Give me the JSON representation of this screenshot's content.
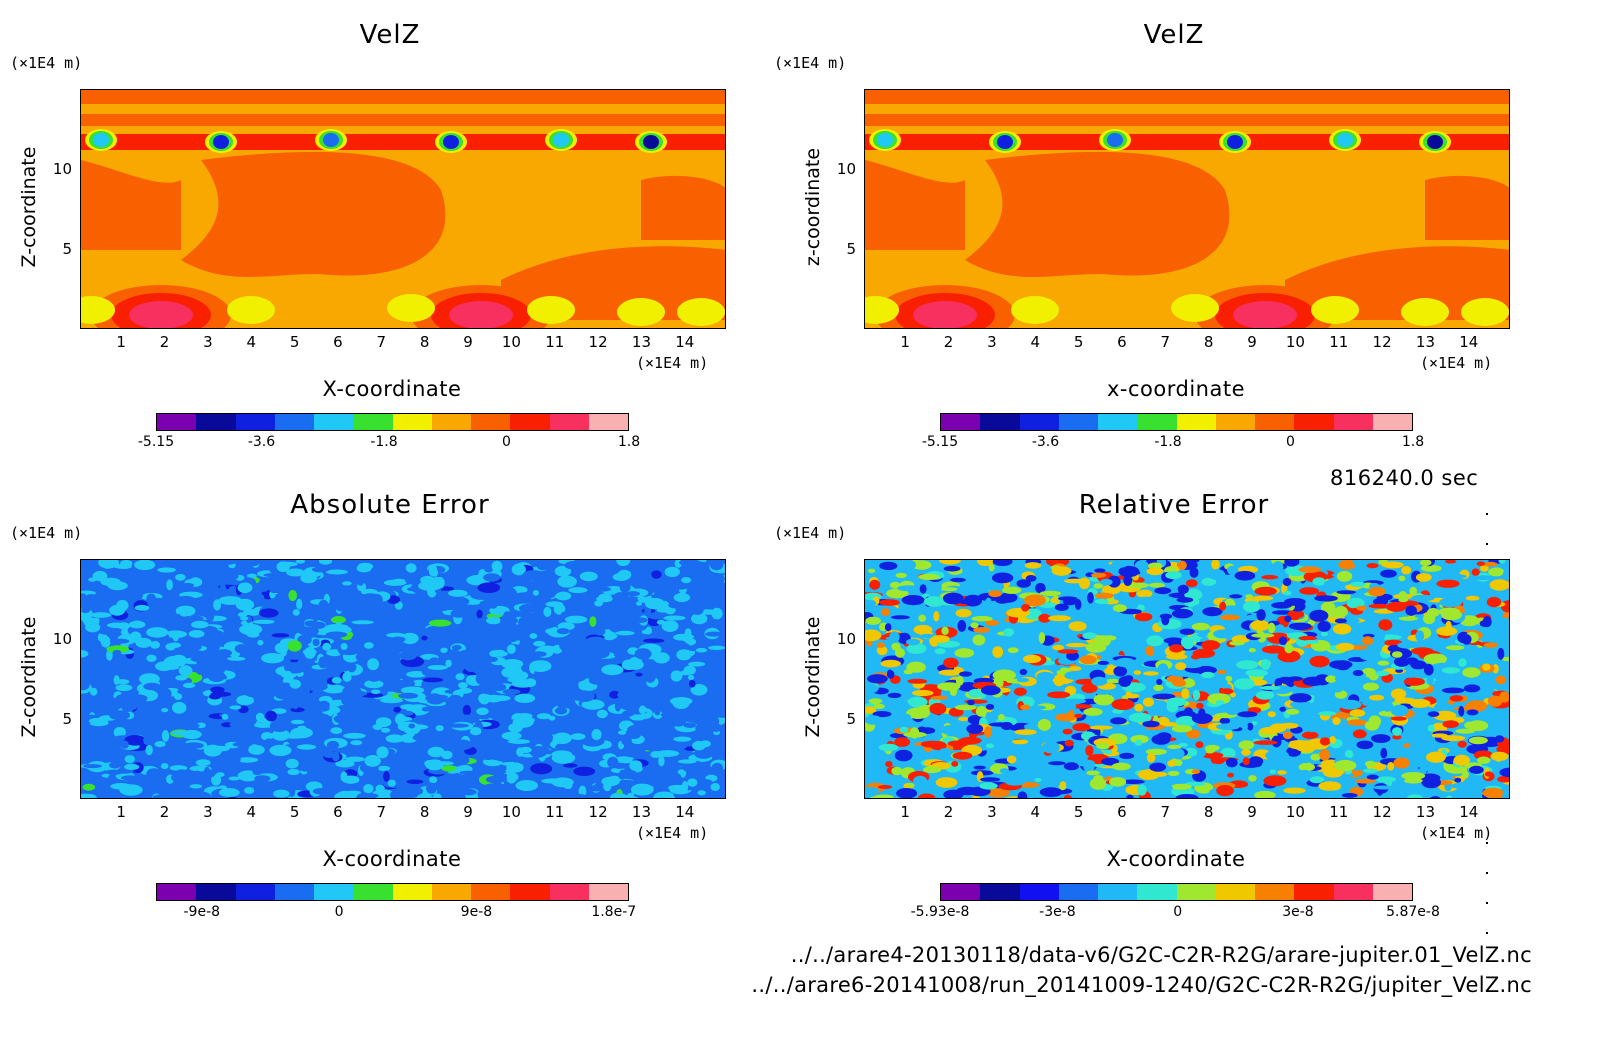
{
  "timestamp": "816240.0 sec",
  "paths": [
    "../../arare4-20130118/data-v6/G2C-C2R-R2G/arare-jupiter.01_VelZ.nc",
    "../../arare6-20141008/run_20141009-1240/G2C-C2R-R2G/jupiter_VelZ.nc"
  ],
  "chart_data": [
    {
      "type": "heatmap",
      "title": "VelZ",
      "xlabel": "X-coordinate",
      "ylabel": "Z-coordinate",
      "x_unit": "(×1E4 m)",
      "y_unit": "(×1E4 m)",
      "x_ticks": [
        "1",
        "2",
        "3",
        "4",
        "5",
        "6",
        "7",
        "8",
        "9",
        "10",
        "11",
        "12",
        "13",
        "14"
      ],
      "y_ticks": [
        "5",
        "10"
      ],
      "xlim": [
        0.05,
        14.95
      ],
      "ylim": [
        0.05,
        14.95
      ],
      "colorbar": {
        "colors": [
          "#7a00b0",
          "#0a0a9a",
          "#1020e0",
          "#1a6cf0",
          "#20c8f5",
          "#38e030",
          "#f0f000",
          "#f8a800",
          "#f86000",
          "#f82000",
          "#f83060",
          "#f8b0b0"
        ],
        "labels": [
          "-5.15",
          "-3.6",
          "-1.8",
          "0",
          "1.8"
        ],
        "label_values": [
          -5.15,
          -3.6,
          -1.8,
          0,
          1.8
        ],
        "range": [
          -5.15,
          1.8
        ]
      }
    },
    {
      "type": "heatmap",
      "title": "VelZ",
      "xlabel": "x-coordinate",
      "ylabel": "z-coordinate",
      "x_unit": "(×1E4 m)",
      "y_unit": "(×1E4 m)",
      "x_ticks": [
        "1",
        "2",
        "3",
        "4",
        "5",
        "6",
        "7",
        "8",
        "9",
        "10",
        "11",
        "12",
        "13",
        "14"
      ],
      "y_ticks": [
        "5",
        "10"
      ],
      "xlim": [
        0.05,
        14.95
      ],
      "ylim": [
        0.05,
        14.95
      ],
      "colorbar": {
        "colors": [
          "#7a00b0",
          "#0a0a9a",
          "#1020e0",
          "#1a6cf0",
          "#20c8f5",
          "#38e030",
          "#f0f000",
          "#f8a800",
          "#f86000",
          "#f82000",
          "#f83060",
          "#f8b0b0"
        ],
        "labels": [
          "-5.15",
          "-3.6",
          "-1.8",
          "0",
          "1.8"
        ],
        "label_values": [
          -5.15,
          -3.6,
          -1.8,
          0,
          1.8
        ],
        "range": [
          -5.15,
          1.8
        ]
      }
    },
    {
      "type": "heatmap",
      "title": "Absolute Error",
      "xlabel": "X-coordinate",
      "ylabel": "Z-coordinate",
      "x_unit": "(×1E4 m)",
      "y_unit": "(×1E4 m)",
      "x_ticks": [
        "1",
        "2",
        "3",
        "4",
        "5",
        "6",
        "7",
        "8",
        "9",
        "10",
        "11",
        "12",
        "13",
        "14"
      ],
      "y_ticks": [
        "5",
        "10"
      ],
      "xlim": [
        0.05,
        14.95
      ],
      "ylim": [
        0.05,
        14.95
      ],
      "colorbar": {
        "colors": [
          "#7a00b0",
          "#0a0a9a",
          "#1020e0",
          "#1a6cf0",
          "#20c8f5",
          "#38e030",
          "#f0f000",
          "#f8a800",
          "#f86000",
          "#f82000",
          "#f83060",
          "#f8b0b0"
        ],
        "labels": [
          "-9e-8",
          "0",
          "9e-8",
          "1.8e-7"
        ],
        "label_values": [
          -9e-08,
          0,
          9e-08,
          1.8e-07
        ],
        "range": [
          -1.2e-07,
          1.9e-07
        ]
      }
    },
    {
      "type": "heatmap",
      "title": "Relative Error",
      "xlabel": "X-coordinate",
      "ylabel": "Z-coordinate",
      "x_unit": "(×1E4 m)",
      "y_unit": "(×1E4 m)",
      "x_ticks": [
        "1",
        "2",
        "3",
        "4",
        "5",
        "6",
        "7",
        "8",
        "9",
        "10",
        "11",
        "12",
        "13",
        "14"
      ],
      "y_ticks": [
        "5",
        "10"
      ],
      "xlim": [
        0.05,
        14.95
      ],
      "ylim": [
        0.05,
        14.95
      ],
      "colorbar": {
        "colors": [
          "#7a00b0",
          "#0a0a9a",
          "#1010f0",
          "#1a6cf0",
          "#20b8f5",
          "#30e8d0",
          "#a0e830",
          "#f0c800",
          "#f88000",
          "#f82000",
          "#f83060",
          "#f8b0b0"
        ],
        "labels": [
          "-5.93e-8",
          "-3e-8",
          "0",
          "3e-8",
          "5.87e-8"
        ],
        "label_values": [
          -5.93e-08,
          -3e-08,
          0,
          3e-08,
          5.87e-08
        ],
        "range": [
          -5.93e-08,
          5.87e-08
        ]
      }
    }
  ]
}
